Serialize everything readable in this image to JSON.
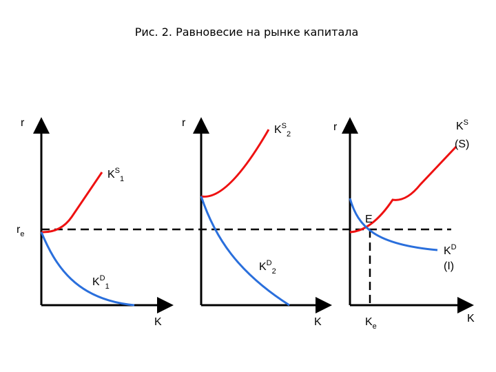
{
  "title": "Рис. 2. Равновесие на рынке капитала",
  "re": {
    "base": "r",
    "sub": "e"
  },
  "panels": [
    {
      "y_label": "r",
      "x_label": "K",
      "supply": {
        "base": "K",
        "sup": "S",
        "sub": "1"
      },
      "demand": {
        "base": "K",
        "sup": "D",
        "sub": "1"
      }
    },
    {
      "y_label": "r",
      "x_label": "K",
      "supply": {
        "base": "K",
        "sup": "S",
        "sub": "2"
      },
      "demand": {
        "base": "K",
        "sup": "D",
        "sub": "2"
      }
    },
    {
      "y_label": "r",
      "x_label": "K",
      "supply": {
        "base": "K",
        "sup": "S",
        "note": "(S)"
      },
      "demand": {
        "base": "K",
        "sup": "D",
        "note": "(I)"
      },
      "equilibrium": "E",
      "k_label": {
        "base": "K",
        "sub": "e"
      }
    }
  ]
}
